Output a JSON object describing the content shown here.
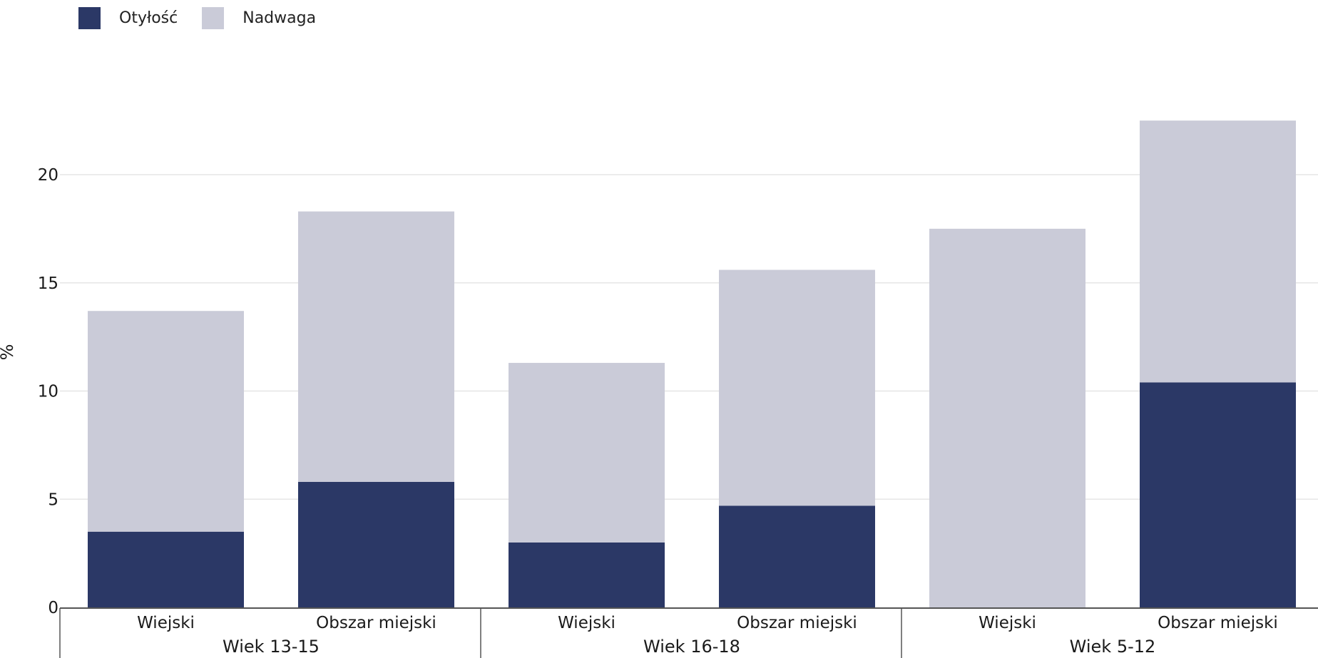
{
  "chart_data": {
    "type": "bar",
    "stacked": true,
    "ylabel": "%",
    "ylim": [
      0,
      23
    ],
    "yticks": [
      0,
      5,
      10,
      15,
      20
    ],
    "grid": true,
    "legend_position": "top-left",
    "groups": [
      {
        "label": "Wiek 13-15",
        "categories": [
          "Wiejski",
          "Obszar miejski"
        ]
      },
      {
        "label": "Wiek 16-18",
        "categories": [
          "Wiejski",
          "Obszar miejski"
        ]
      },
      {
        "label": "Wiek 5-12",
        "categories": [
          "Wiejski",
          "Obszar miejski"
        ]
      }
    ],
    "series": [
      {
        "name": "Otyłość",
        "color": "#2b3866",
        "values": [
          3.5,
          5.8,
          3.0,
          4.7,
          0,
          10.4
        ]
      },
      {
        "name": "Nadwaga",
        "color": "#cacbd8",
        "values": [
          10.2,
          12.5,
          8.3,
          10.9,
          17.5,
          12.1
        ]
      }
    ]
  }
}
